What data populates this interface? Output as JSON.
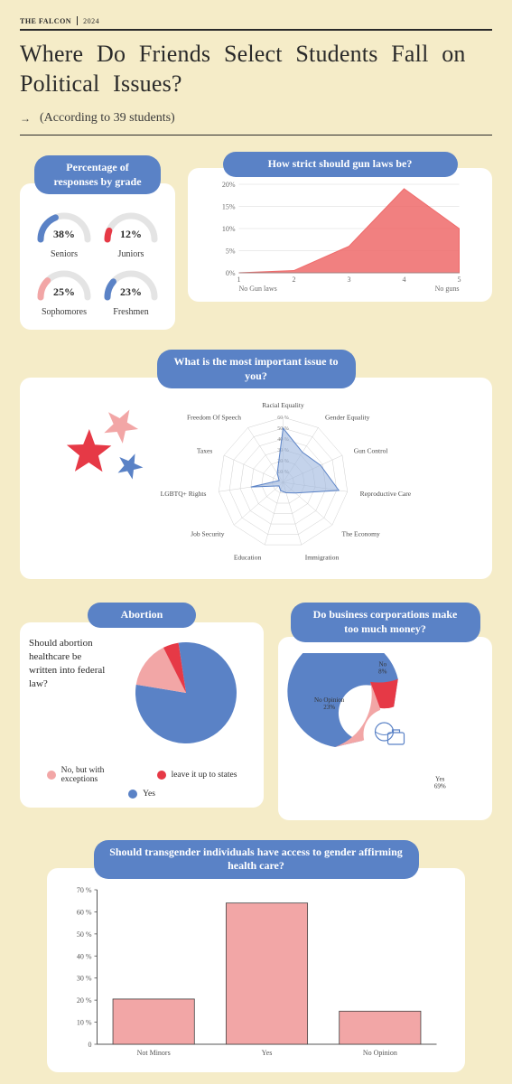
{
  "header": {
    "brand": "THE FALCON",
    "year": "2024",
    "title": "Where Do Friends Select Students Fall on Political Issues?",
    "subtitle": "(According to 39 students)"
  },
  "colors": {
    "bg": "#f5ecc8",
    "blue": "#5a82c6",
    "blue_fill": "#9db6de",
    "red": "#e63946",
    "pink": "#f2a6a6",
    "gauge_track": "#e4e4e4",
    "text": "#2a2a2a",
    "grid": "#d7d7d7"
  },
  "grades": {
    "title": "Percentage of responses by grade",
    "items": [
      {
        "label": "Seniors",
        "value": 38,
        "pct_text": "38%",
        "color": "#5a82c6"
      },
      {
        "label": "Juniors",
        "value": 12,
        "pct_text": "12%",
        "color": "#e63946"
      },
      {
        "label": "Sophomores",
        "value": 25,
        "pct_text": "25%",
        "color": "#f2a6a6"
      },
      {
        "label": "Freshmen",
        "value": 23,
        "pct_text": "23%",
        "color": "#5a82c6"
      }
    ]
  },
  "gun": {
    "title": "How strict should gun laws be?",
    "x_labels": [
      "1",
      "2",
      "3",
      "4",
      "5"
    ],
    "x_end_labels": [
      "No Gun laws",
      "No guns"
    ],
    "y_ticks": [
      "0%",
      "5%",
      "10%",
      "15%",
      "20%"
    ],
    "y_max": 20,
    "values": [
      0,
      0.5,
      6,
      19,
      10
    ],
    "area_color": "#ef6a6a",
    "area_opacity": 0.85
  },
  "radar": {
    "title": "What is the most important issue to you?",
    "categories": [
      "Racial Equality",
      "Gender Equality",
      "Gun Control",
      "Reproductive Care",
      "The Economy",
      "Immigration",
      "Education",
      "Job Security",
      "LGBTQ+ Rights",
      "Taxes",
      "Freedom Of Speech"
    ],
    "max": 60,
    "rings": [
      10,
      20,
      30,
      40,
      50,
      60
    ],
    "ring_labels": [
      "10 %",
      "20 %",
      "30 %",
      "40 %",
      "50 %",
      "60 %"
    ],
    "values": [
      50,
      33,
      38,
      52,
      15,
      10,
      8,
      5,
      30,
      4,
      10
    ],
    "fill_color": "#9db6de",
    "fill_opacity": 0.6,
    "grid_color": "#cfcfcf"
  },
  "abortion": {
    "title": "Abortion",
    "question": "Should abortion healthcare be written into federal law?",
    "slices": [
      {
        "label": "Yes",
        "value": 80,
        "color": "#5a82c6"
      },
      {
        "label": "No, but with exceptions",
        "value": 15,
        "color": "#f2a6a6"
      },
      {
        "label": "leave it up to states",
        "value": 5,
        "color": "#e63946"
      }
    ],
    "legend": [
      {
        "label": "No, but with exceptions",
        "color": "#f2a6a6"
      },
      {
        "label": "leave it up to states",
        "color": "#e63946"
      },
      {
        "label": "Yes",
        "color": "#5a82c6"
      }
    ]
  },
  "corp": {
    "title": "Do business corporations make too much money?",
    "slices": [
      {
        "label": "Yes",
        "value": 69,
        "text": "Yes\n69%",
        "color": "#5a82c6"
      },
      {
        "label": "No Opinion",
        "value": 23,
        "text": "No Opinion\n23%",
        "color": "#f2a6a6"
      },
      {
        "label": "No",
        "value": 8,
        "text": "No\n8%",
        "color": "#e63946"
      }
    ],
    "inner_radius_ratio": 0.5
  },
  "trans": {
    "title": "Should transgender individuals have access to gender affirming health care?",
    "y_ticks": [
      "0",
      "10 %",
      "20 %",
      "30 %",
      "40 %",
      "50 %",
      "60 %",
      "70 %"
    ],
    "y_max": 70,
    "bars": [
      {
        "label": "Not Minors",
        "value": 20.5
      },
      {
        "label": "Yes",
        "value": 64
      },
      {
        "label": "No Opinion",
        "value": 15
      }
    ],
    "bar_color": "#f2a6a6",
    "bar_stroke": "#444"
  }
}
